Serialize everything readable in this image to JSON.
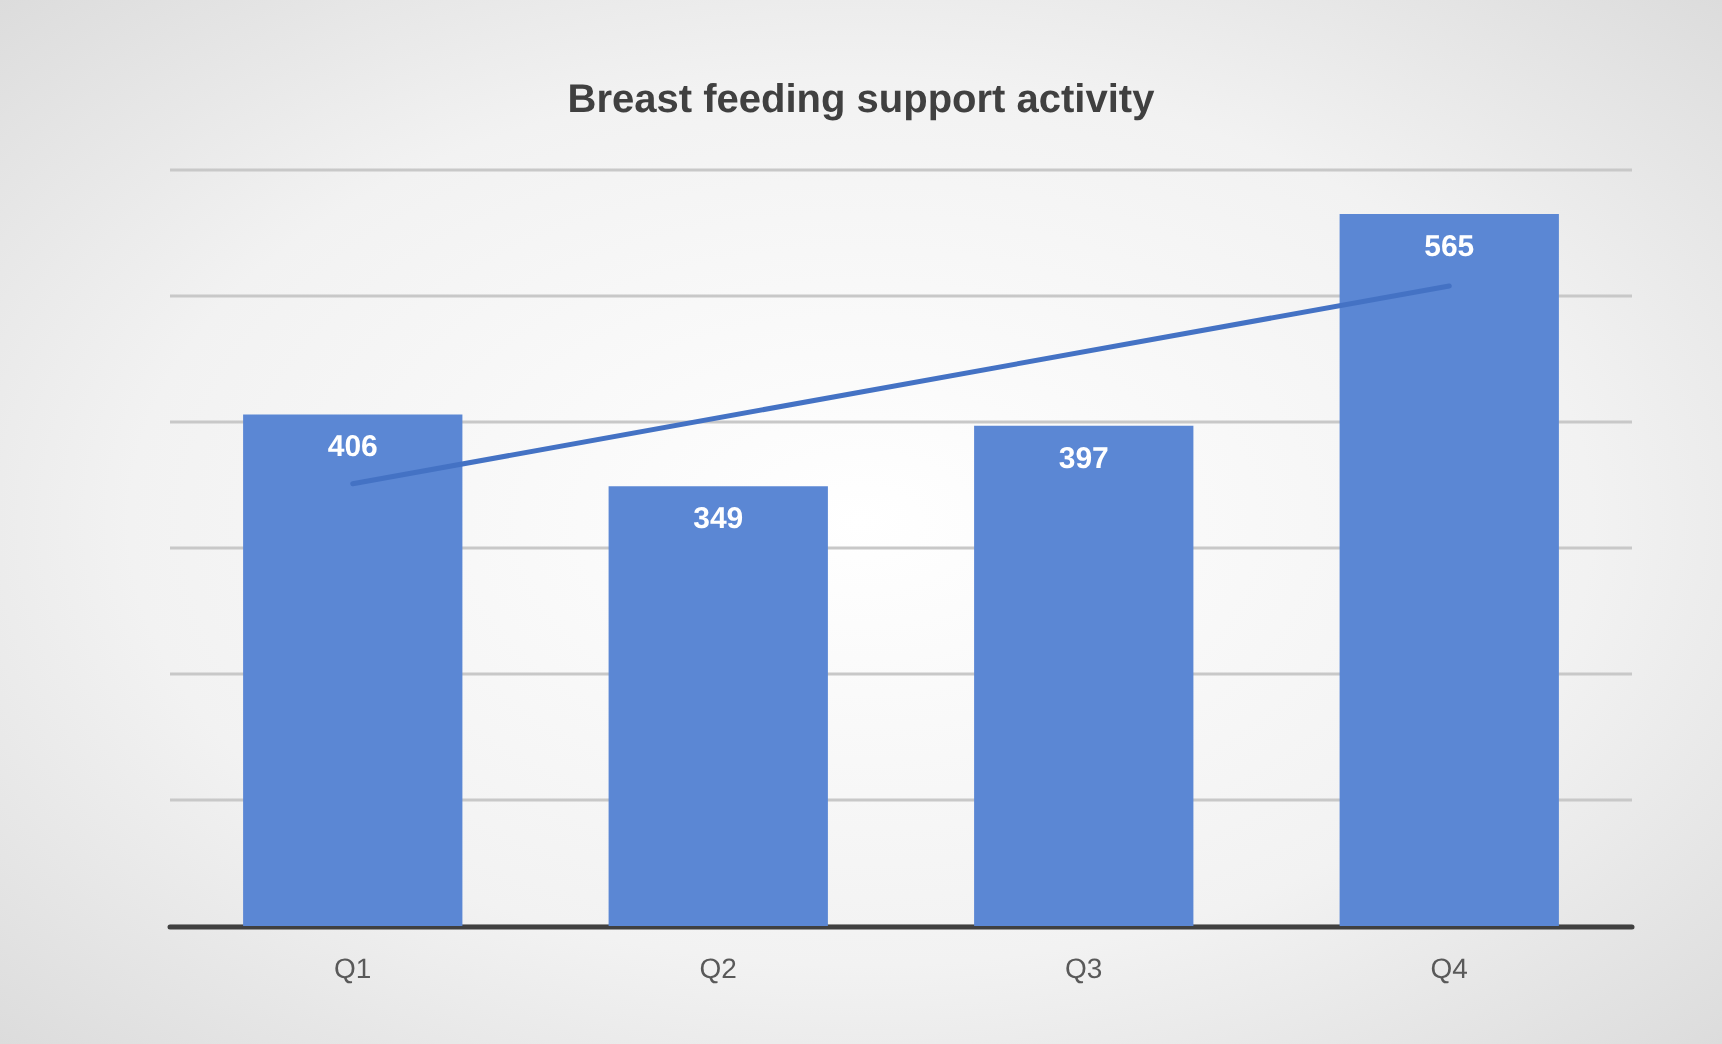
{
  "chart_data": {
    "type": "bar",
    "title": "Breast feeding support activity",
    "categories": [
      "Q1",
      "Q2",
      "Q3",
      "Q4"
    ],
    "series": [
      {
        "color": "#5b87d4",
        "values": [
          406,
          349,
          397,
          565
        ],
        "data_labels": true
      },
      {
        "type": "line",
        "color": "#4472c4",
        "x": [
          "Q1",
          "Q4"
        ],
        "values": [
          351,
          508
        ],
        "marker": "none",
        "line_style": "solid"
      }
    ],
    "ylim": [
      0,
      600
    ],
    "yticks": [
      {
        "value": 0,
        "label": null
      },
      {
        "value": 100,
        "label": null
      },
      {
        "value": 200,
        "label": null
      },
      {
        "value": 300,
        "label": null
      },
      {
        "value": 400,
        "label": null
      },
      {
        "value": 500,
        "label": null
      },
      {
        "value": 600,
        "label": null
      }
    ],
    "tick_labels": "x",
    "grid": "y"
  }
}
